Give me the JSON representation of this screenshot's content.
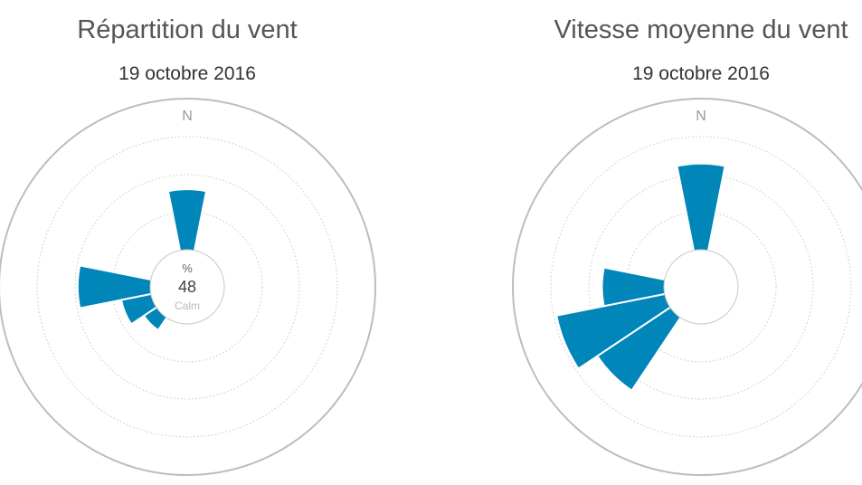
{
  "chart_data": [
    {
      "type": "polar-bar",
      "title": "Répartition du vent",
      "subtitle": "19 octobre 2016",
      "north_label": "N",
      "center": {
        "unit": "%",
        "value": "48",
        "label": "Calm"
      },
      "scale_max": 100,
      "sectors": [
        {
          "direction_deg": 0,
          "value": 40
        },
        {
          "direction_deg": 270,
          "value": 48
        },
        {
          "direction_deg": 247.5,
          "value": 20
        },
        {
          "direction_deg": 225,
          "value": 10
        }
      ],
      "color": "#0086b9",
      "grid": true
    },
    {
      "type": "polar-bar",
      "title": "Vitesse moyenne du vent",
      "subtitle": "19 octobre 2016",
      "north_label": "N",
      "center": {
        "unit": "",
        "value": "",
        "label": ""
      },
      "scale_max": 100,
      "sectors": [
        {
          "direction_deg": 0,
          "value": 57
        },
        {
          "direction_deg": 270,
          "value": 41
        },
        {
          "direction_deg": 247.5,
          "value": 73
        },
        {
          "direction_deg": 225,
          "value": 58
        }
      ],
      "color": "#0086b9",
      "grid": true
    }
  ]
}
